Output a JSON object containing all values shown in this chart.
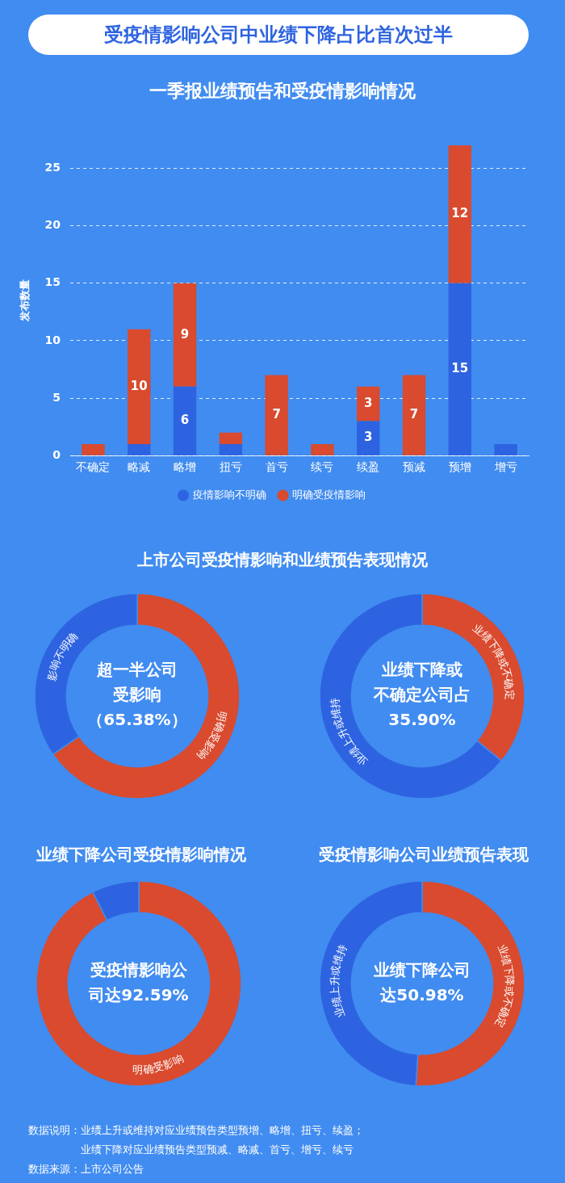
{
  "chart_data": [
    {
      "type": "bar",
      "title": "受疫情影响公司中业绩下降占比首次过半",
      "subtitle": "一季报业绩预告和受疫情影响情况",
      "ylabel": "发布数量",
      "categories": [
        "不确定",
        "略减",
        "略增",
        "扭亏",
        "首亏",
        "续亏",
        "续盈",
        "预减",
        "预增",
        "增亏"
      ],
      "series": [
        {
          "name": "疫情影响不明确",
          "color": "#2d63e0",
          "values": [
            0,
            1,
            6,
            1,
            0,
            0,
            3,
            0,
            15,
            1
          ],
          "value_labels": [
            null,
            null,
            "6",
            null,
            null,
            null,
            "3",
            null,
            "15",
            null
          ]
        },
        {
          "name": "明确受疫情影响",
          "color": "#d94a2e",
          "values": [
            1,
            10,
            9,
            1,
            7,
            1,
            3,
            7,
            12,
            0
          ],
          "value_labels": [
            null,
            "10",
            "9",
            null,
            "7",
            null,
            "3",
            "7",
            "12",
            null
          ]
        }
      ],
      "stacked": true,
      "ylim": [
        0,
        27
      ],
      "yticks": [
        0,
        5,
        10,
        15,
        20,
        25
      ],
      "grid": "y",
      "legend": "bottom",
      "marker": "circle"
    },
    {
      "type": "donut",
      "title": "上市公司受疫情影响和业绩预告表现情况",
      "categories": [
        "明确受影响",
        "影响不明确"
      ],
      "values": [
        65.38,
        34.62
      ],
      "colors": [
        "#d94a2e",
        "#2d63e0"
      ],
      "annotations": [
        "超一半公司受影响（65.38%）"
      ]
    },
    {
      "type": "donut",
      "categories": [
        "业绩下降或不确定",
        "业绩上升或维持"
      ],
      "values": [
        35.9,
        64.1
      ],
      "colors": [
        "#d94a2e",
        "#2d63e0"
      ],
      "annotations": [
        "业绩下降或不确定公司占35.90%"
      ]
    },
    {
      "type": "donut",
      "title": "业绩下降公司受疫情影响情况",
      "categories": [
        "明确受影响",
        null
      ],
      "values": [
        92.59,
        7.41
      ],
      "colors": [
        "#d94a2e",
        "#2d63e0"
      ],
      "annotations": [
        "受疫情影响公司达92.59%"
      ]
    },
    {
      "type": "donut",
      "title": "受疫情影响公司业绩预告表现",
      "categories": [
        "业绩下降或不确定",
        "业绩上升或维持"
      ],
      "values": [
        50.98,
        49.02
      ],
      "colors": [
        "#d94a2e",
        "#2d63e0"
      ],
      "annotations": [
        "业绩下降公司达50.98%",
        "数据说明：业绩上升或维持对应业绩预告类型预增、略增、扭亏、续盈；",
        "　　　　　业绩下降对应业绩预告类型预减、略减、首亏、增亏、续亏",
        "数据来源：上市公司公告"
      ]
    }
  ]
}
